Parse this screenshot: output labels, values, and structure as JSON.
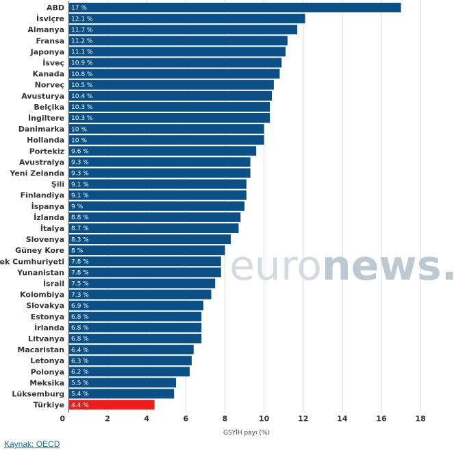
{
  "chart_data": {
    "type": "bar",
    "orientation": "horizontal",
    "categories": [
      "ABD",
      "İsviçre",
      "Almanya",
      "Fransa",
      "Japonya",
      "İsveç",
      "Kanada",
      "Norveç",
      "Avusturya",
      "Belçika",
      "İngiltere",
      "Danimarka",
      "Hollanda",
      "Portekiz",
      "Avustralya",
      "Yeni Zelanda",
      "Şili",
      "Finlandiya",
      "İspanya",
      "İzlanda",
      "İtalya",
      "Slovenya",
      "Güney Kore",
      "Çek Cumhuriyeti",
      "Yunanistan",
      "İsrail",
      "Kolombiya",
      "Slovakya",
      "Estonya",
      "İrlanda",
      "Litvanya",
      "Macaristan",
      "Letonya",
      "Polonya",
      "Meksika",
      "Lüksemburg",
      "Türkiye"
    ],
    "values": [
      17,
      12.1,
      11.7,
      11.2,
      11.1,
      10.9,
      10.8,
      10.5,
      10.4,
      10.3,
      10.3,
      10,
      10,
      9.6,
      9.3,
      9.3,
      9.1,
      9.1,
      9,
      8.8,
      8.7,
      8.3,
      8,
      7.8,
      7.8,
      7.5,
      7.3,
      6.9,
      6.8,
      6.8,
      6.8,
      6.4,
      6.3,
      6.2,
      5.5,
      5.4,
      4.4
    ],
    "data_labels": [
      "17 %",
      "12.1 %",
      "11.7 %",
      "11.2 %",
      "11.1 %",
      "10.9 %",
      "10.8 %",
      "10.5 %",
      "10.4 %",
      "10.3 %",
      "10.3 %",
      "10 %",
      "10 %",
      "9.6 %",
      "9.3 %",
      "9.3 %",
      "9.1 %",
      "9.1 %",
      "9 %",
      "8.8 %",
      "8.7 %",
      "8.3 %",
      "8 %",
      "7.8 %",
      "7.8 %",
      "7.5 %",
      "7.3 %",
      "6.9 %",
      "6.8 %",
      "6.8 %",
      "6.8 %",
      "6.4 %",
      "6.3 %",
      "6.2 %",
      "5.5 %",
      "5.4 %",
      "4.4 %"
    ],
    "xlabel": "GSYİH payı (%)",
    "xlim": [
      0,
      18
    ],
    "xticks": [
      "0",
      "2",
      "4",
      "6",
      "8",
      "10",
      "12",
      "14",
      "16",
      "18"
    ],
    "grid": true,
    "highlight_category": "Türkiye",
    "colors": {
      "bar": "#0b4f87",
      "highlight": "#ee1c1c",
      "grid": "#d8d8d8"
    }
  },
  "watermark": {
    "part1": "euro",
    "part2": "news",
    "part3": ".",
    "colors": [
      "#d3dbe2",
      "#bcc9d3"
    ]
  },
  "source": {
    "label": "Kaynak: OECD"
  }
}
